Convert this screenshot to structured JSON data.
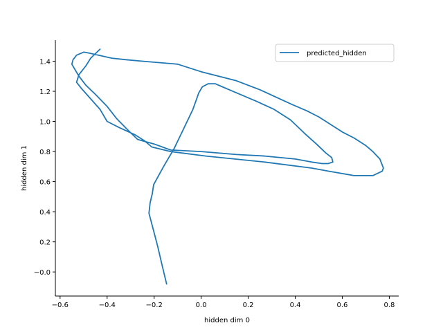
{
  "chart_data": {
    "type": "line",
    "title": "",
    "xlabel": "hidden dim 0",
    "ylabel": "hidden dim 1",
    "xlim": [
      -0.62,
      0.84
    ],
    "ylim": [
      -0.16,
      1.54
    ],
    "xticks": [
      -0.6,
      -0.4,
      -0.2,
      0.0,
      0.2,
      0.4,
      0.6,
      0.8
    ],
    "xtick_labels": [
      "−0.6",
      "−0.4",
      "−0.2",
      "0.0",
      "0.2",
      "0.4",
      "0.6",
      "0.8"
    ],
    "yticks": [
      0.0,
      0.2,
      0.4,
      0.6,
      0.8,
      1.0,
      1.2,
      1.4
    ],
    "ytick_labels": [
      "−0.0",
      "0.2",
      "0.4",
      "0.6",
      "0.8",
      "1.0",
      "1.2",
      "1.4"
    ],
    "grid": false,
    "legend_position": "top-right",
    "colors": {
      "series": "#1f77b4"
    },
    "series": [
      {
        "name": "predicted_hidden",
        "x": [
          -0.147,
          -0.167,
          -0.185,
          -0.205,
          -0.222,
          -0.217,
          -0.208,
          -0.202,
          -0.16,
          -0.115,
          -0.075,
          -0.035,
          -0.01,
          0.005,
          0.03,
          0.06,
          0.09,
          0.15,
          0.24,
          0.31,
          0.38,
          0.44,
          0.49,
          0.53,
          0.555,
          0.56,
          0.54,
          0.515,
          0.47,
          0.4,
          0.27,
          0.15,
          0.0,
          -0.13,
          -0.2,
          -0.27,
          -0.31,
          -0.36,
          -0.4,
          -0.45,
          -0.49,
          -0.52,
          -0.535,
          -0.55,
          -0.545,
          -0.53,
          -0.5,
          -0.48,
          -0.38,
          -0.32,
          -0.25,
          -0.1,
          0.0,
          0.15,
          0.25,
          0.32,
          0.39,
          0.45,
          0.5,
          0.55,
          0.6,
          0.65,
          0.7,
          0.73,
          0.76,
          0.775,
          0.77,
          0.73,
          0.65,
          0.54,
          0.47,
          0.27,
          0.02,
          -0.13,
          -0.21,
          -0.24,
          -0.28,
          -0.35,
          -0.4,
          -0.43,
          -0.47,
          -0.51,
          -0.53,
          -0.52,
          -0.49,
          -0.47,
          -0.43
        ],
        "y": [
          -0.08,
          0.05,
          0.17,
          0.29,
          0.39,
          0.46,
          0.52,
          0.58,
          0.7,
          0.82,
          0.95,
          1.08,
          1.19,
          1.23,
          1.25,
          1.25,
          1.23,
          1.19,
          1.13,
          1.08,
          1.01,
          0.92,
          0.85,
          0.79,
          0.76,
          0.73,
          0.72,
          0.72,
          0.73,
          0.75,
          0.77,
          0.78,
          0.8,
          0.81,
          0.85,
          0.88,
          0.94,
          1.02,
          1.1,
          1.18,
          1.24,
          1.3,
          1.34,
          1.38,
          1.41,
          1.44,
          1.46,
          1.455,
          1.42,
          1.41,
          1.4,
          1.38,
          1.33,
          1.27,
          1.21,
          1.16,
          1.11,
          1.07,
          1.03,
          0.98,
          0.93,
          0.89,
          0.84,
          0.8,
          0.75,
          0.69,
          0.67,
          0.64,
          0.64,
          0.67,
          0.69,
          0.73,
          0.77,
          0.8,
          0.83,
          0.87,
          0.91,
          0.96,
          1.0,
          1.08,
          1.15,
          1.22,
          1.26,
          1.31,
          1.37,
          1.42,
          1.48
        ]
      }
    ]
  }
}
